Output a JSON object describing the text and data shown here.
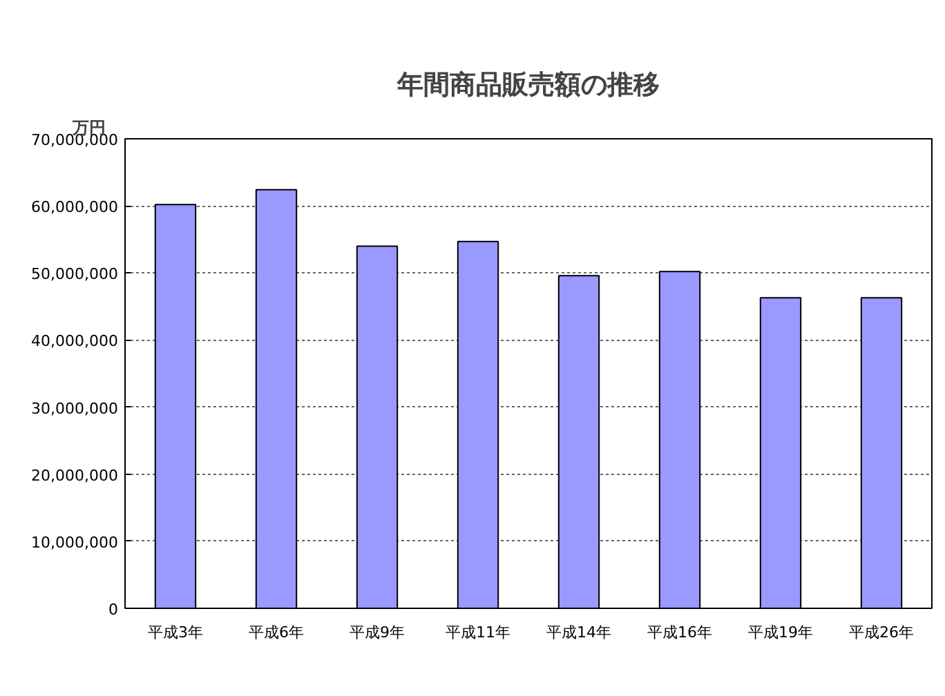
{
  "chart_data": {
    "type": "bar",
    "title": "年間商品販売額の推移",
    "ylabel": "万円",
    "categories": [
      "平成3年",
      "平成6年",
      "平成9年",
      "平成11年",
      "平成14年",
      "平成16年",
      "平成19年",
      "平成26年"
    ],
    "values": [
      60200000,
      62400000,
      54000000,
      54700000,
      49600000,
      50200000,
      46300000,
      46300000
    ],
    "color": "#9999ff",
    "ylim": [
      0,
      70000000
    ],
    "yticks": [
      {
        "value": 0,
        "label": "0"
      },
      {
        "value": 10000000,
        "label": "10,000,000"
      },
      {
        "value": 20000000,
        "label": "20,000,000"
      },
      {
        "value": 30000000,
        "label": "30,000,000"
      },
      {
        "value": 40000000,
        "label": "40,000,000"
      },
      {
        "value": 50000000,
        "label": "50,000,000"
      },
      {
        "value": 60000000,
        "label": "60,000,000"
      },
      {
        "value": 70000000,
        "label": "70,000,000"
      }
    ],
    "grid": "y"
  }
}
